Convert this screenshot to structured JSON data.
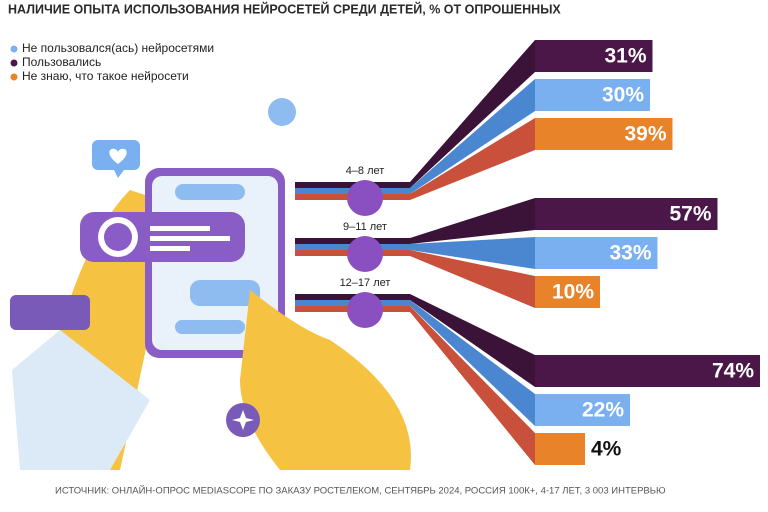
{
  "chart_data": {
    "type": "bar",
    "orientation": "horizontal",
    "title": "НАЛИЧИЕ ОПЫТА ИСПОЛЬЗОВАНИЯ НЕЙРОСЕТЕЙ СРЕДИ ДЕТЕЙ, % ОТ ОПРОШЕННЫХ",
    "source": "ИСТОЧНИК: ОНЛАЙН-ОПРОС MEDIASCOPE ПО ЗАКАЗУ РОСТЕЛЕКОМ, СЕНТЯБРЬ 2024, РОССИЯ 100К+, 4-17 ЛЕТ, 3 003 ИНТЕРВЬЮ",
    "categories": [
      "4–8 лет",
      "9–11 лет",
      "12–17 лет"
    ],
    "series": [
      {
        "name": "Не пользовался(ась) нейросетями",
        "color": "#7ab0f0",
        "values": [
          30,
          33,
          22
        ],
        "value_labels": [
          "30%",
          "33%",
          "22%"
        ]
      },
      {
        "name": "Пользовались",
        "color": "#4b1748",
        "values": [
          31,
          57,
          74
        ],
        "value_labels": [
          "31%",
          "57%",
          "74%"
        ]
      },
      {
        "name": "Не знаю, что такое нейросети",
        "color": "#e8832a",
        "values": [
          39,
          10,
          4
        ],
        "value_labels": [
          "39%",
          "10%",
          "4%"
        ]
      }
    ]
  }
}
